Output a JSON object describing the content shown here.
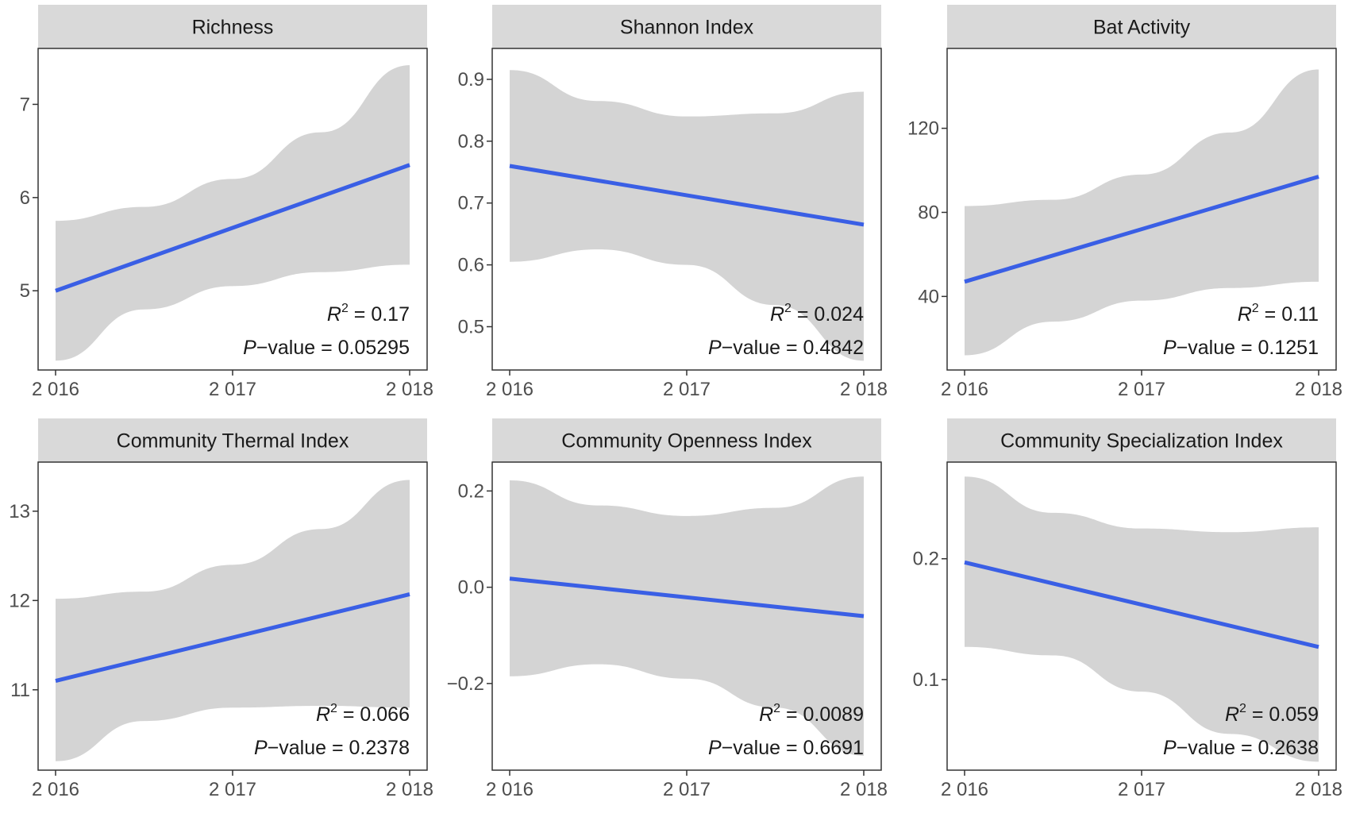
{
  "chart_data": [
    {
      "type": "line",
      "title": "Richness",
      "x_ticks": [
        "2 016",
        "2 017",
        "2 018"
      ],
      "y_ticks": [
        "5",
        "6",
        "7"
      ],
      "ylim": [
        4.15,
        7.6
      ],
      "fit": {
        "x": [
          2016,
          2018
        ],
        "y": [
          5.0,
          6.35
        ]
      },
      "ci_lower": [
        4.25,
        4.8,
        5.05,
        5.2,
        5.28
      ],
      "ci_upper": [
        5.75,
        5.9,
        6.2,
        6.7,
        7.42
      ],
      "stats": {
        "r2_label": "R",
        "r2_sup": "2",
        "r2_value": " = 0.17",
        "p_label": "P",
        "p_value": "−value = 0.05295"
      },
      "colors": {
        "line": "#3a5fe5",
        "band": "#d4d4d4",
        "strip": "#d9d9d9"
      }
    },
    {
      "type": "line",
      "title": "Shannon Index",
      "x_ticks": [
        "2 016",
        "2 017",
        "2 018"
      ],
      "y_ticks": [
        "0.5",
        "0.6",
        "0.7",
        "0.8",
        "0.9"
      ],
      "ylim": [
        0.43,
        0.95
      ],
      "fit": {
        "x": [
          2016,
          2018
        ],
        "y": [
          0.76,
          0.665
        ]
      },
      "ci_lower": [
        0.605,
        0.625,
        0.6,
        0.535,
        0.445
      ],
      "ci_upper": [
        0.915,
        0.865,
        0.84,
        0.845,
        0.88
      ],
      "stats": {
        "r2_label": "R",
        "r2_sup": "2",
        "r2_value": " = 0.024",
        "p_label": "P",
        "p_value": "−value = 0.4842"
      },
      "colors": {
        "line": "#3a5fe5",
        "band": "#d4d4d4",
        "strip": "#d9d9d9"
      }
    },
    {
      "type": "line",
      "title": "Bat Activity",
      "x_ticks": [
        "2 016",
        "2 017",
        "2 018"
      ],
      "y_ticks": [
        "40",
        "80",
        "120"
      ],
      "ylim": [
        5,
        158
      ],
      "fit": {
        "x": [
          2016,
          2018
        ],
        "y": [
          47,
          97
        ]
      },
      "ci_lower": [
        12,
        28,
        38,
        44,
        47
      ],
      "ci_upper": [
        83,
        86,
        98,
        118,
        148
      ],
      "stats": {
        "r2_label": "R",
        "r2_sup": "2",
        "r2_value": " = 0.11",
        "p_label": "P",
        "p_value": "−value = 0.1251"
      },
      "colors": {
        "line": "#3a5fe5",
        "band": "#d4d4d4",
        "strip": "#d9d9d9"
      }
    },
    {
      "type": "line",
      "title": "Community Thermal Index",
      "x_ticks": [
        "2 016",
        "2 017",
        "2 018"
      ],
      "y_ticks": [
        "11",
        "12",
        "13"
      ],
      "ylim": [
        10.1,
        13.55
      ],
      "fit": {
        "x": [
          2016,
          2018
        ],
        "y": [
          11.1,
          12.07
        ]
      },
      "ci_lower": [
        10.2,
        10.65,
        10.8,
        10.82,
        10.8
      ],
      "ci_upper": [
        12.02,
        12.1,
        12.4,
        12.8,
        13.35
      ],
      "stats": {
        "r2_label": "R",
        "r2_sup": "2",
        "r2_value": " = 0.066",
        "p_label": "P",
        "p_value": "−value = 0.2378"
      },
      "colors": {
        "line": "#3a5fe5",
        "band": "#d4d4d4",
        "strip": "#d9d9d9"
      }
    },
    {
      "type": "line",
      "title": "Community Openness Index",
      "x_ticks": [
        "2 016",
        "2 017",
        "2 018"
      ],
      "y_ticks": [
        "−0.2",
        "0.0",
        "0.2"
      ],
      "ylim": [
        -0.38,
        0.26
      ],
      "fit": {
        "x": [
          2016,
          2018
        ],
        "y": [
          0.018,
          -0.06
        ]
      },
      "ci_lower": [
        -0.185,
        -0.16,
        -0.19,
        -0.25,
        -0.35
      ],
      "ci_upper": [
        0.222,
        0.17,
        0.148,
        0.165,
        0.23
      ],
      "stats": {
        "r2_label": "R",
        "r2_sup": "2",
        "r2_value": " = 0.0089",
        "p_label": "P",
        "p_value": "−value = 0.6691"
      },
      "colors": {
        "line": "#3a5fe5",
        "band": "#d4d4d4",
        "strip": "#d9d9d9"
      }
    },
    {
      "type": "line",
      "title": "Community Specialization Index",
      "x_ticks": [
        "2 016",
        "2 017",
        "2 018"
      ],
      "y_ticks": [
        "0.1",
        "0.2"
      ],
      "ylim": [
        0.025,
        0.28
      ],
      "fit": {
        "x": [
          2016,
          2018
        ],
        "y": [
          0.197,
          0.127
        ]
      },
      "ci_lower": [
        0.127,
        0.12,
        0.09,
        0.055,
        0.032
      ],
      "ci_upper": [
        0.268,
        0.238,
        0.225,
        0.222,
        0.226
      ],
      "stats": {
        "r2_label": "R",
        "r2_sup": "2",
        "r2_value": " = 0.059",
        "p_label": "P",
        "p_value": "−value = 0.2638"
      },
      "colors": {
        "line": "#3a5fe5",
        "band": "#d4d4d4",
        "strip": "#d9d9d9"
      }
    }
  ]
}
